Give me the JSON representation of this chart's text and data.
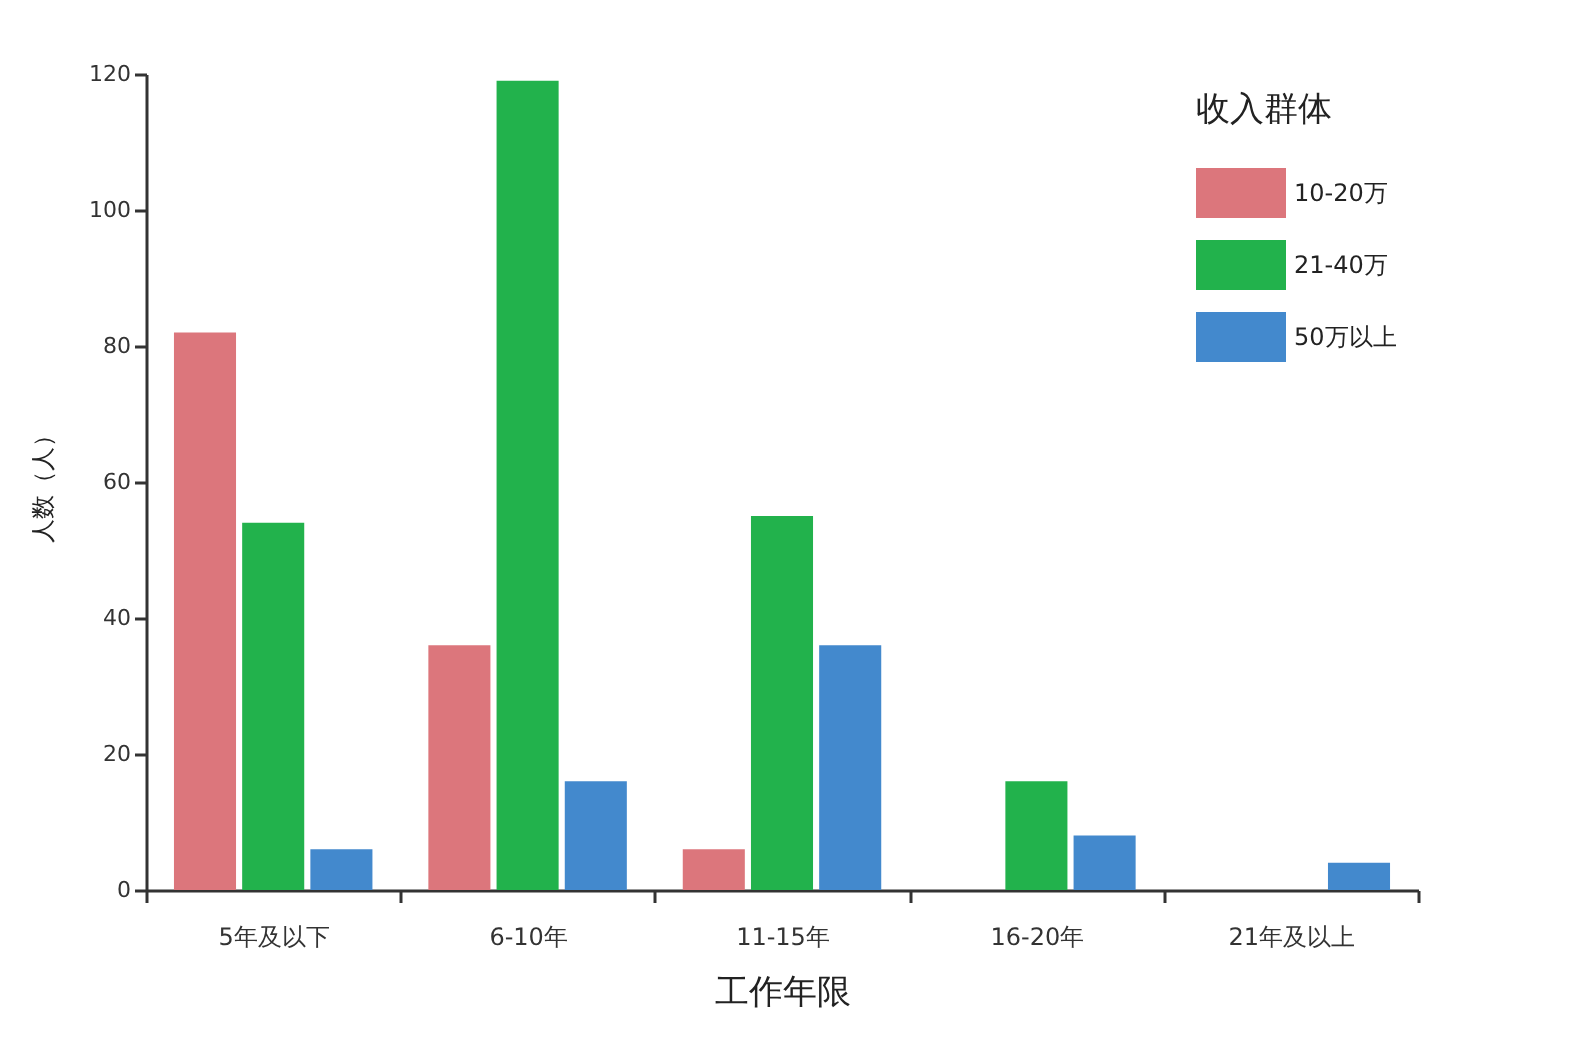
{
  "chart_data": {
    "type": "bar",
    "xlabel": "工作年限",
    "ylabel": "人数（人）",
    "legend_title": "收入群体",
    "categories": [
      "5年及以下",
      "6-10年",
      "11-15年",
      "16-20年",
      "21年及以上"
    ],
    "series": [
      {
        "name": "10-20万",
        "color": "#dc767c",
        "values": [
          82,
          36,
          6,
          null,
          null
        ]
      },
      {
        "name": "21-40万",
        "color": "#22b24c",
        "values": [
          54,
          119,
          55,
          16,
          null
        ]
      },
      {
        "name": "50万以上",
        "color": "#4389cd",
        "values": [
          6,
          16,
          36,
          8,
          4
        ]
      }
    ],
    "ylim": [
      0,
      120
    ],
    "yticks": [
      0,
      20,
      40,
      60,
      80,
      100,
      120
    ],
    "grid": false,
    "legend": "top right"
  }
}
